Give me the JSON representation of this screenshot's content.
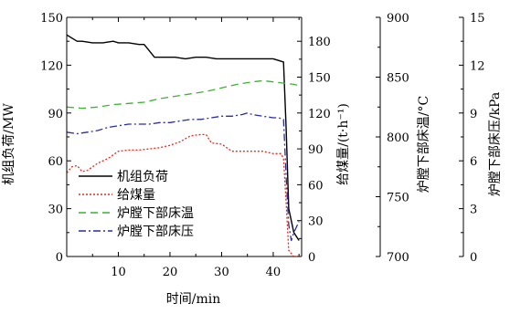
{
  "chart_data": {
    "type": "line",
    "xlabel": "时间/min",
    "xlim": [
      0,
      45.5
    ],
    "xticks": [
      10,
      20,
      30,
      40
    ],
    "axes": [
      {
        "id": "load",
        "label": "机组负荷/MW",
        "lim": [
          0,
          150
        ],
        "ticks": [
          0,
          30,
          60,
          90,
          120,
          150
        ],
        "side": "left"
      },
      {
        "id": "coal",
        "label": "给煤量/(t·h⁻¹)",
        "lim": [
          0,
          200
        ],
        "ticks": [
          0,
          30,
          60,
          90,
          120,
          150,
          180
        ],
        "side": "right"
      },
      {
        "id": "temp",
        "label": "炉膛下部床温/°C",
        "lim": [
          700,
          900
        ],
        "ticks": [
          700,
          750,
          800,
          850,
          900
        ],
        "side": "right"
      },
      {
        "id": "press",
        "label": "炉膛下部床压/kPa",
        "lim": [
          0,
          15
        ],
        "ticks": [
          0,
          3,
          6,
          9,
          12,
          15
        ],
        "side": "right"
      }
    ],
    "series": [
      {
        "name": "机组负荷",
        "axis": "load",
        "color": "#000000",
        "dash": "none",
        "x": [
          0,
          1,
          2,
          3,
          5,
          7,
          9,
          10,
          12,
          14,
          15,
          16,
          17,
          19,
          21,
          23,
          25,
          27,
          29,
          31,
          33,
          35,
          37,
          39,
          40,
          41,
          42,
          42.5,
          43,
          44,
          45
        ],
        "y": [
          139,
          137,
          135,
          135,
          134,
          134,
          135,
          134,
          134,
          133,
          133,
          129,
          125,
          125,
          125,
          124,
          125,
          125,
          124,
          124,
          124,
          124,
          124,
          124,
          124,
          123,
          122,
          80,
          30,
          15,
          10
        ]
      },
      {
        "name": "给煤量",
        "axis": "coal",
        "color": "#e8281e",
        "dash": "2,2",
        "x": [
          0,
          1,
          2,
          3,
          4,
          6,
          8,
          10,
          12,
          14,
          16,
          18,
          20,
          22,
          24,
          26,
          27,
          28,
          30,
          32,
          34,
          36,
          38,
          40,
          41,
          41.5,
          42,
          42.5,
          43,
          44,
          45
        ],
        "y": [
          70,
          75,
          76,
          71,
          72,
          78,
          82,
          88,
          89,
          89,
          90,
          91,
          93,
          96,
          101,
          102,
          102,
          95,
          94,
          88,
          88,
          88,
          88,
          86,
          86,
          86,
          82,
          45,
          5,
          0,
          0
        ]
      },
      {
        "name": "炉膛下部床温",
        "axis": "temp",
        "color": "#3cb232",
        "dash": "8,5",
        "x": [
          0,
          3,
          6,
          9,
          12,
          15,
          18,
          21,
          24,
          27,
          30,
          33,
          36,
          38,
          40,
          42,
          44,
          45
        ],
        "y": [
          825,
          824,
          825,
          827,
          828,
          829,
          832,
          834,
          836,
          838,
          841,
          844,
          846,
          847,
          846,
          845,
          844,
          843
        ]
      },
      {
        "name": "炉膛下部床压",
        "axis": "press",
        "color": "#2b2c9e",
        "dash": "8,3,2,3",
        "x": [
          0,
          2,
          4,
          6,
          8,
          10,
          12,
          14,
          16,
          18,
          20,
          22,
          24,
          26,
          28,
          30,
          32,
          34,
          35,
          36,
          38,
          40,
          41,
          42,
          42.5,
          43,
          43.5,
          44,
          45
        ],
        "y": [
          7.8,
          7.7,
          7.8,
          7.9,
          8.1,
          8.2,
          8.3,
          8.3,
          8.3,
          8.4,
          8.4,
          8.5,
          8.6,
          8.6,
          8.7,
          8.8,
          8.8,
          8.9,
          9.0,
          8.9,
          8.8,
          8.7,
          8.7,
          8.6,
          5.0,
          2.0,
          1.0,
          1.5,
          2.2
        ]
      }
    ],
    "legend": {
      "placement": "bottom-left",
      "entries": [
        "机组负荷",
        "给煤量",
        "炉膛下部床温",
        "炉膛下部床压"
      ]
    },
    "grid": false
  }
}
